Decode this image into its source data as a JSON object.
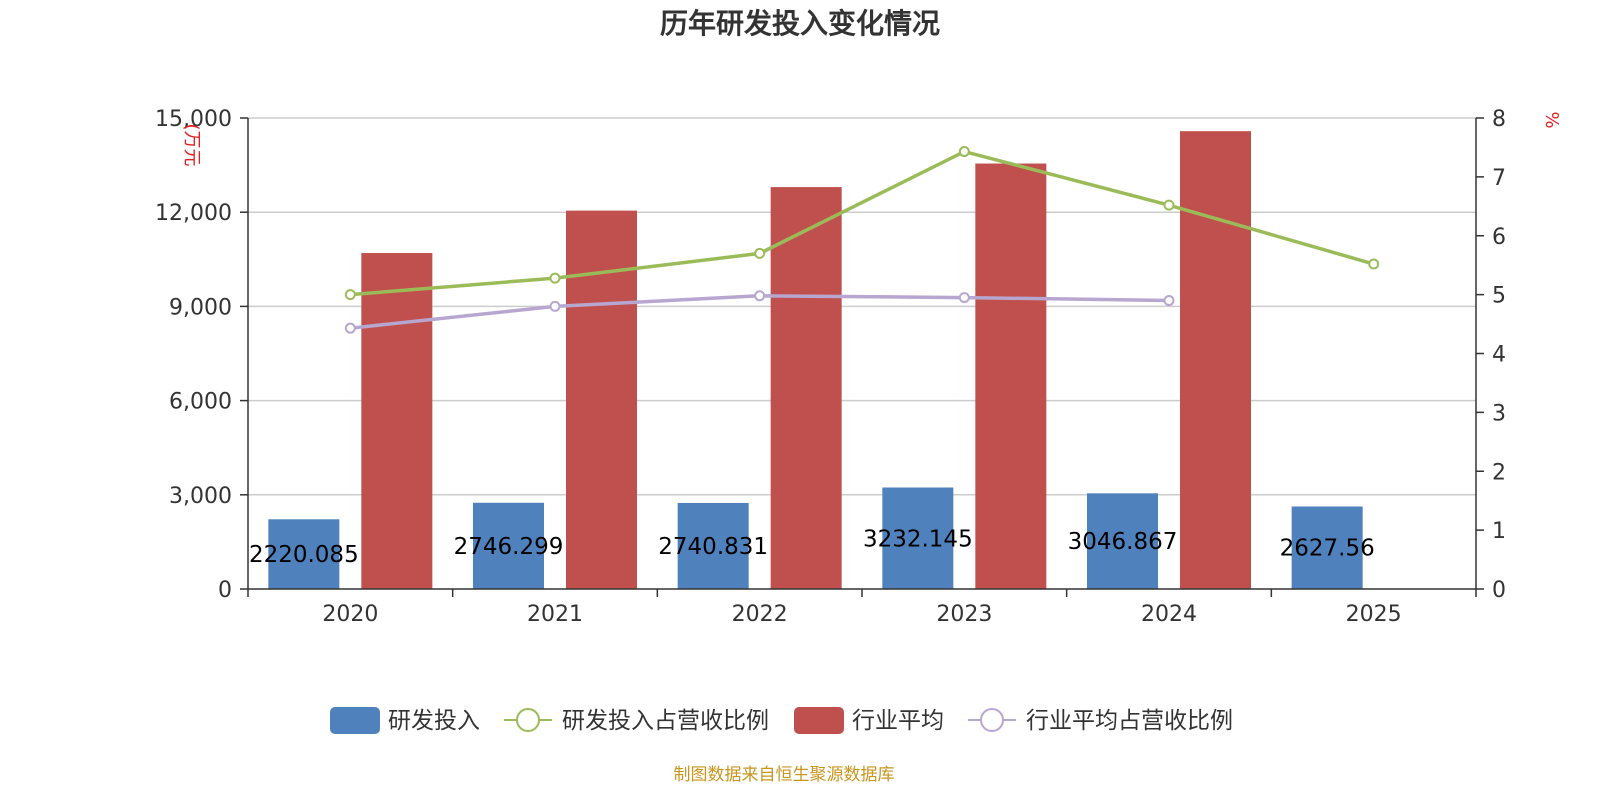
{
  "title": "历年研发投入变化情况",
  "source": "制图数据来自恒生聚源数据库",
  "colors": {
    "rd": "#4f81bd",
    "rd_ratio": "#9bbb59",
    "industry": "#c0504d",
    "industry_ratio": "#b7a6cf"
  },
  "chart_data": {
    "type": "bar",
    "categories": [
      "2020",
      "2021",
      "2022",
      "2023",
      "2024",
      "2025"
    ],
    "y_left": {
      "label": "(万元",
      "ylim": [
        0,
        15000
      ],
      "ticks": [
        "0",
        "3,000",
        "6,000",
        "9,000",
        "12,000",
        "15,000"
      ]
    },
    "y_right": {
      "label": "%",
      "ylim": [
        0,
        8
      ],
      "ticks": [
        "0",
        "1",
        "2",
        "3",
        "4",
        "5",
        "6",
        "7",
        "8"
      ]
    },
    "grid": true,
    "legend_position": "bottom",
    "series": [
      {
        "name": "研发投入",
        "kind": "bar",
        "axis": "left",
        "values": [
          2220.085,
          2746.299,
          2740.831,
          3232.145,
          3046.867,
          2627.56
        ],
        "labels": [
          "2220.085",
          "2746.299",
          "2740.831",
          "3232.145",
          "3046.867",
          "2627.56"
        ]
      },
      {
        "name": "研发投入占营收比例",
        "kind": "line",
        "axis": "right",
        "values": [
          5.0,
          5.28,
          5.7,
          7.43,
          6.52,
          5.52
        ]
      },
      {
        "name": "行业平均",
        "kind": "bar",
        "axis": "left",
        "values": [
          10700,
          12050,
          12800,
          13550,
          14580,
          null
        ]
      },
      {
        "name": "行业平均占营收比例",
        "kind": "line",
        "axis": "right",
        "values": [
          4.43,
          4.8,
          4.98,
          4.95,
          4.9,
          null
        ]
      }
    ]
  }
}
